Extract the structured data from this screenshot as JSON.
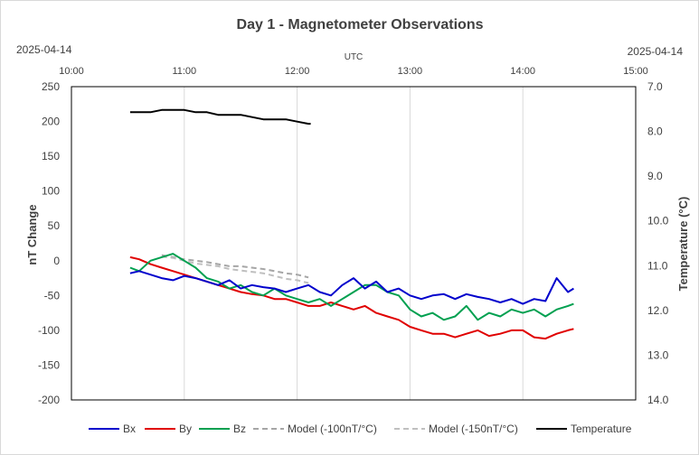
{
  "chart_data": {
    "type": "line",
    "title": "Day 1 - Magnetometer Observations",
    "date_left": "2025-04-14",
    "date_right": "2025-04-14",
    "x_axis_title": "UTC",
    "x_ticks": [
      "10:00",
      "11:00",
      "12:00",
      "13:00",
      "14:00",
      "15:00"
    ],
    "x_range": [
      10.0,
      15.0
    ],
    "ylabel_left": "nT Change",
    "ylim_left": [
      -200,
      250
    ],
    "y_ticks_left": [
      "250",
      "200",
      "150",
      "100",
      "50",
      "0",
      "-50",
      "-100",
      "-150",
      "-200"
    ],
    "ylabel_right": "Temperature (°C)",
    "ylim_right": [
      7.0,
      14.0
    ],
    "right_axis_reversed": true,
    "y_ticks_right": [
      "7.0",
      "8.0",
      "9.0",
      "10.0",
      "11.0",
      "12.0",
      "13.0",
      "14.0"
    ],
    "grid": "vertical only",
    "legend_position": "bottom",
    "series": [
      {
        "name": "Bx",
        "color": "#0000CC",
        "axis": "left",
        "style": "solid",
        "x": [
          10.52,
          10.6,
          10.7,
          10.8,
          10.9,
          11.0,
          11.1,
          11.2,
          11.3,
          11.4,
          11.5,
          11.6,
          11.7,
          11.8,
          11.9,
          12.0,
          12.1,
          12.2,
          12.3,
          12.4,
          12.5,
          12.6,
          12.7,
          12.8,
          12.9,
          13.0,
          13.1,
          13.2,
          13.3,
          13.4,
          13.5,
          13.6,
          13.7,
          13.8,
          13.9,
          14.0,
          14.1,
          14.2,
          14.3,
          14.4,
          14.45
        ],
        "values": [
          -18,
          -15,
          -20,
          -25,
          -28,
          -22,
          -25,
          -30,
          -35,
          -28,
          -40,
          -35,
          -38,
          -40,
          -45,
          -40,
          -35,
          -45,
          -50,
          -35,
          -25,
          -40,
          -30,
          -45,
          -40,
          -50,
          -55,
          -50,
          -48,
          -55,
          -48,
          -52,
          -55,
          -60,
          -55,
          -62,
          -55,
          -58,
          -25,
          -45,
          -40
        ]
      },
      {
        "name": "By",
        "color": "#E00000",
        "axis": "left",
        "style": "solid",
        "x": [
          10.52,
          10.6,
          10.7,
          10.8,
          10.9,
          11.0,
          11.1,
          11.2,
          11.3,
          11.4,
          11.5,
          11.6,
          11.7,
          11.8,
          11.9,
          12.0,
          12.1,
          12.2,
          12.3,
          12.4,
          12.5,
          12.6,
          12.7,
          12.8,
          12.9,
          13.0,
          13.1,
          13.2,
          13.3,
          13.4,
          13.5,
          13.6,
          13.7,
          13.8,
          13.9,
          14.0,
          14.1,
          14.2,
          14.3,
          14.4,
          14.45
        ],
        "values": [
          5,
          2,
          -5,
          -10,
          -15,
          -20,
          -25,
          -30,
          -35,
          -40,
          -45,
          -48,
          -50,
          -55,
          -55,
          -60,
          -65,
          -65,
          -60,
          -65,
          -70,
          -65,
          -75,
          -80,
          -85,
          -95,
          -100,
          -105,
          -105,
          -110,
          -105,
          -100,
          -108,
          -105,
          -100,
          -100,
          -110,
          -112,
          -105,
          -100,
          -98
        ]
      },
      {
        "name": "Bz",
        "color": "#00A050",
        "axis": "left",
        "style": "solid",
        "x": [
          10.52,
          10.6,
          10.7,
          10.8,
          10.9,
          11.0,
          11.1,
          11.2,
          11.3,
          11.4,
          11.5,
          11.6,
          11.7,
          11.8,
          11.9,
          12.0,
          12.1,
          12.2,
          12.3,
          12.4,
          12.5,
          12.6,
          12.7,
          12.8,
          12.9,
          13.0,
          13.1,
          13.2,
          13.3,
          13.4,
          13.5,
          13.6,
          13.7,
          13.8,
          13.9,
          14.0,
          14.1,
          14.2,
          14.3,
          14.4,
          14.45
        ],
        "values": [
          -10,
          -15,
          0,
          5,
          10,
          0,
          -10,
          -25,
          -30,
          -40,
          -35,
          -45,
          -50,
          -40,
          -50,
          -55,
          -60,
          -55,
          -65,
          -55,
          -45,
          -35,
          -35,
          -45,
          -50,
          -70,
          -80,
          -75,
          -85,
          -80,
          -65,
          -85,
          -75,
          -80,
          -70,
          -75,
          -70,
          -80,
          -70,
          -65,
          -62
        ]
      },
      {
        "name": "Model (-100nT/°C)",
        "color": "#A6A6A6",
        "axis": "left",
        "style": "dashed",
        "x": [
          10.8,
          10.9,
          11.0,
          11.1,
          11.2,
          11.3,
          11.4,
          11.5,
          11.6,
          11.7,
          11.8,
          11.9,
          12.0,
          12.1
        ],
        "values": [
          8,
          5,
          2,
          0,
          -2,
          -5,
          -8,
          -8,
          -10,
          -12,
          -15,
          -18,
          -20,
          -24
        ]
      },
      {
        "name": "Model (-150nT/°C)",
        "color": "#BFBFBF",
        "axis": "left",
        "style": "dashed",
        "x": [
          10.8,
          10.9,
          11.0,
          11.1,
          11.2,
          11.3,
          11.4,
          11.5,
          11.6,
          11.7,
          11.8,
          11.9,
          12.0,
          12.1
        ],
        "values": [
          6,
          4,
          0,
          -4,
          -6,
          -8,
          -12,
          -14,
          -16,
          -18,
          -22,
          -26,
          -28,
          -32
        ]
      },
      {
        "name": "Temperature",
        "color": "#000000",
        "axis": "right",
        "style": "solid",
        "x": [
          10.52,
          10.6,
          10.7,
          10.8,
          10.9,
          11.0,
          11.1,
          11.2,
          11.3,
          11.4,
          11.5,
          11.6,
          11.7,
          11.8,
          11.9,
          12.0,
          12.1,
          12.12
        ],
        "values": [
          7.57,
          7.57,
          7.57,
          7.52,
          7.52,
          7.52,
          7.57,
          7.57,
          7.63,
          7.63,
          7.63,
          7.68,
          7.73,
          7.73,
          7.73,
          7.78,
          7.83,
          7.83
        ]
      }
    ]
  }
}
